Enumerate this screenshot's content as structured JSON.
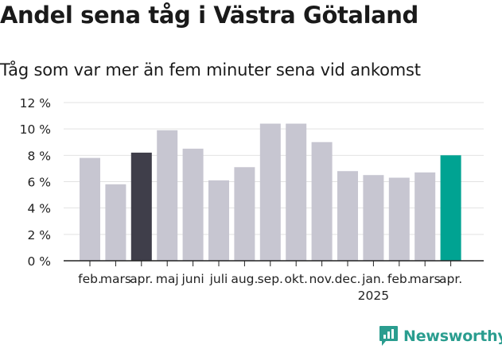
{
  "title": "Andel sena tåg i Västra Götaland",
  "subtitle": "Tåg som var mer än fem minuter sena vid ankomst",
  "brand": {
    "name": "Newsworthy",
    "icon": "newsworthy-logo-icon"
  },
  "colors": {
    "default": "#c7c6d1",
    "previous_year": "#3f3e4a",
    "current": "#00a392"
  },
  "chart_data": {
    "type": "bar",
    "categories": [
      "feb.",
      "mars",
      "apr.",
      "maj",
      "juni",
      "juli",
      "aug.",
      "sep.",
      "okt.",
      "nov.",
      "dec.",
      "jan.",
      "feb.",
      "mars",
      "apr."
    ],
    "values": [
      7.8,
      5.8,
      8.2,
      9.9,
      8.5,
      6.1,
      7.1,
      10.4,
      10.4,
      9.0,
      6.8,
      6.5,
      6.3,
      6.7,
      8.0
    ],
    "highlight": {
      "2": "previous_year",
      "14": "current"
    },
    "year_label": {
      "index": 11,
      "text": "2025"
    },
    "yticks": [
      "0 %",
      "2 %",
      "4 %",
      "6 %",
      "8 %",
      "10 %",
      "12 %"
    ],
    "ylim": [
      0,
      12
    ],
    "grid": true,
    "legend": "none"
  }
}
